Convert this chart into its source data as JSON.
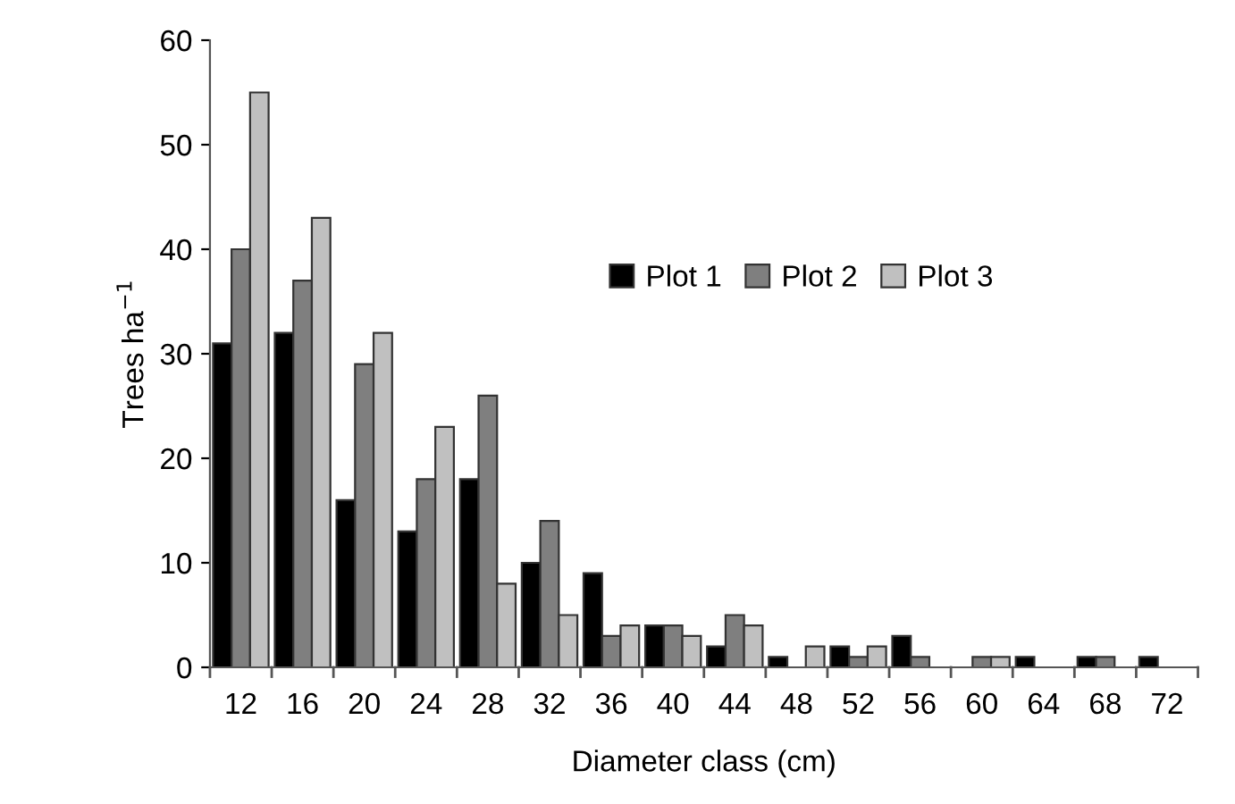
{
  "chart_data": {
    "type": "bar",
    "xlabel": "Diameter class (cm)",
    "ylabel": "Trees ha$^{−1}$",
    "categories": [
      "12",
      "16",
      "20",
      "24",
      "28",
      "32",
      "36",
      "40",
      "44",
      "48",
      "52",
      "56",
      "60",
      "64",
      "68",
      "72"
    ],
    "series": [
      {
        "name": "Plot 1",
        "color": "#000000",
        "values": [
          31,
          32,
          16,
          13,
          18,
          10,
          9,
          4,
          2,
          1,
          2,
          3,
          null,
          1,
          1,
          1
        ]
      },
      {
        "name": "Plot 2",
        "color": "#7f7f7f",
        "values": [
          40,
          37,
          29,
          18,
          26,
          14,
          3,
          4,
          5,
          null,
          1,
          1,
          1,
          null,
          1,
          null
        ]
      },
      {
        "name": "Plot 3",
        "color": "#c0c0c0",
        "values": [
          55,
          43,
          32,
          23,
          8,
          5,
          4,
          3,
          4,
          2,
          2,
          null,
          1,
          null,
          null,
          null
        ]
      }
    ],
    "ylim": [
      0,
      60
    ],
    "yticks": [
      0,
      10,
      20,
      30,
      40,
      50,
      60
    ],
    "grid": false,
    "legend": "right"
  }
}
